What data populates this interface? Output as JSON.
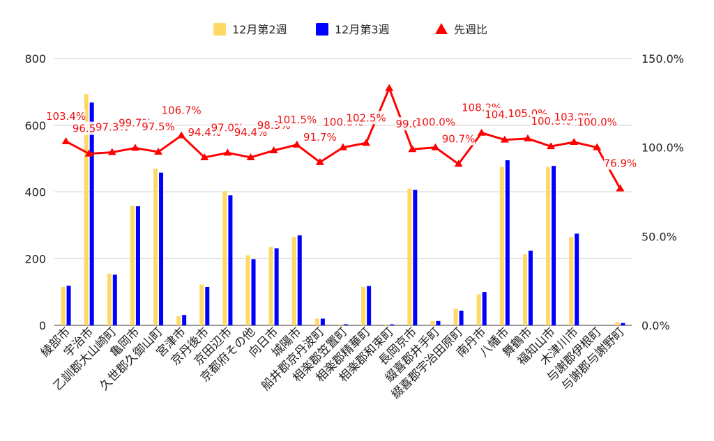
{
  "chart_data": {
    "type": "bar",
    "categories": [
      "綾部市",
      "宇治市",
      "乙訓郡大山崎町",
      "亀岡市",
      "久世郡久御山町",
      "宮津市",
      "京丹後市",
      "京田辺市",
      "京都府その他",
      "向日市",
      "城陽市",
      "船井郡京丹波町",
      "相楽郡笠置町",
      "相楽郡精華町",
      "相楽郡和束町",
      "長岡京市",
      "綴喜郡井手町",
      "綴喜郡宇治田原町",
      "南丹市",
      "八幡市",
      "舞鶴市",
      "福知山市",
      "木津川市",
      "与謝郡伊根町",
      "与謝郡与謝野町"
    ],
    "series": [
      {
        "name": "12月第2週",
        "type": "bar",
        "color": "#ffd966",
        "values": [
          115,
          693,
          155,
          358,
          470,
          28,
          122,
          403,
          210,
          235,
          265,
          20,
          3,
          115,
          3,
          410,
          13,
          50,
          93,
          475,
          213,
          475,
          265,
          0,
          10
        ]
      },
      {
        "name": "12月第3週",
        "type": "bar",
        "color": "#0000ff",
        "values": [
          119,
          668,
          152,
          357,
          458,
          31,
          115,
          390,
          198,
          231,
          270,
          20,
          3,
          118,
          3,
          406,
          13,
          44,
          100,
          495,
          224,
          478,
          275,
          0,
          7
        ]
      },
      {
        "name": "先週比",
        "type": "line",
        "axis": "right",
        "color": "#ff0000",
        "values": [
          103.4,
          96.5,
          97.3,
          99.7,
          97.5,
          106.7,
          94.4,
          97.0,
          94.4,
          98.3,
          101.5,
          91.7,
          100.0,
          102.5,
          133.3,
          99.0,
          100.0,
          90.7,
          108.2,
          104.3,
          105.0,
          100.6,
          103.0,
          100.0,
          76.9
        ]
      }
    ],
    "data_labels": [
      "103.4%",
      "96.5%",
      "97.3%",
      "99.7%",
      "97.5%",
      "106.7%",
      "94.4%",
      "97.0%",
      "94.4%",
      "98.3%",
      "101.5%",
      "91.7%",
      "100.0%",
      "102.5%",
      "",
      "99.0%",
      "100.0%",
      "90.7%",
      "108.2%",
      "104.3%",
      "105.0%",
      "100.6%",
      "103.0%",
      "100.0%",
      "76.9%"
    ],
    "y_left": {
      "ticks": [
        "0",
        "200",
        "400",
        "600",
        "800"
      ],
      "ylim": [
        0,
        800
      ]
    },
    "y_right": {
      "ticks": [
        "0.0%",
        "50.0%",
        "100.0%",
        "150.0%"
      ],
      "ylim": [
        0,
        150
      ]
    },
    "legend_position": "top",
    "grid": true
  }
}
